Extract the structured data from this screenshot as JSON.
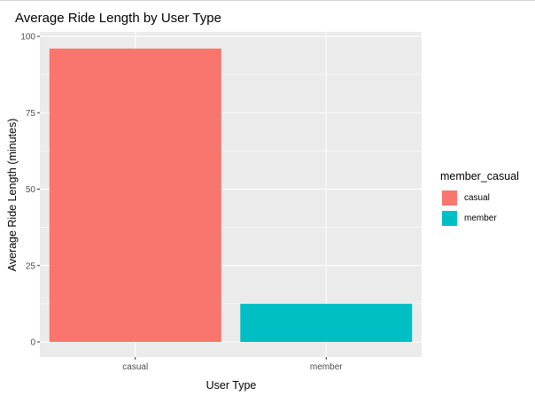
{
  "chart_data": {
    "type": "bar",
    "title": "Average Ride Length by User Type",
    "xlabel": "User Type",
    "ylabel": "Average Ride Length (minutes)",
    "categories": [
      "casual",
      "member"
    ],
    "values": [
      96,
      12.5
    ],
    "ylim": [
      0,
      100
    ],
    "yticks": [
      0,
      25,
      50,
      75,
      100
    ],
    "grid": true,
    "legend": {
      "title": "member_casual",
      "placement": "right",
      "items": [
        {
          "label": "casual",
          "color": "#F8766D"
        },
        {
          "label": "member",
          "color": "#00BFC4"
        }
      ]
    },
    "colors": {
      "panel_background": "#EBEBEB",
      "grid_major": "#FFFFFF",
      "casual": "#F8766D",
      "member": "#00BFC4"
    }
  }
}
